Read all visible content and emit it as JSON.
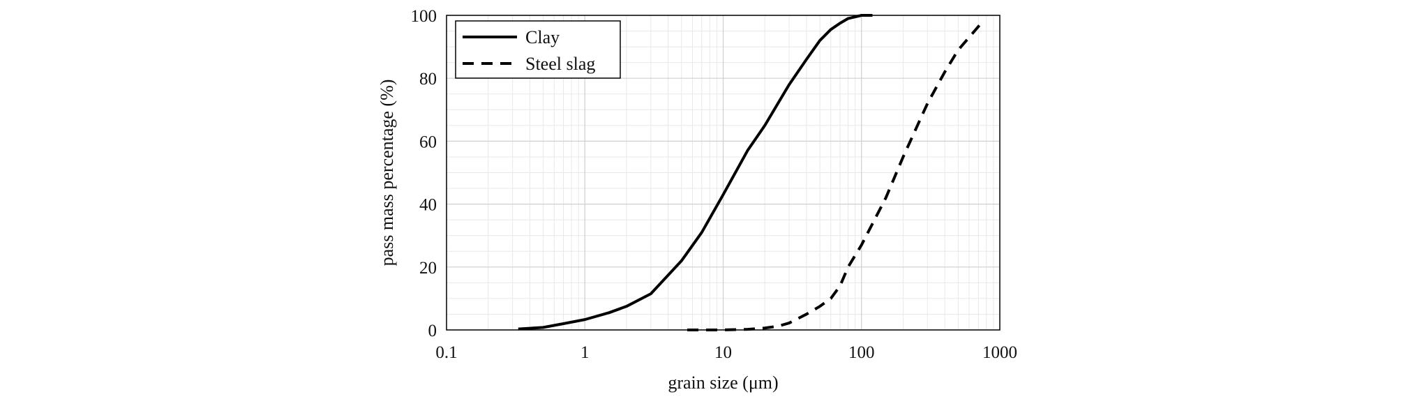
{
  "chart_data": {
    "type": "line",
    "title": "",
    "xlabel": "grain size (μm)",
    "ylabel": "pass mass percentage (%)",
    "x_scale": "log",
    "xlim": [
      0.1,
      1000
    ],
    "ylim": [
      0,
      100
    ],
    "x_ticks": [
      0.1,
      1,
      10,
      100,
      1000
    ],
    "x_tick_labels": [
      "0.1",
      "1",
      "10",
      "100",
      "1000"
    ],
    "y_ticks": [
      0,
      20,
      40,
      60,
      80,
      100
    ],
    "y_tick_labels": [
      "0",
      "20",
      "40",
      "60",
      "80",
      "100"
    ],
    "grid": true,
    "legend_position": "top-left",
    "series": [
      {
        "name": "Clay",
        "style": "solid",
        "color": "#000000",
        "x": [
          0.33,
          0.5,
          0.7,
          1.0,
          1.5,
          2.0,
          3.0,
          5.0,
          7.0,
          10,
          15,
          20,
          30,
          40,
          50,
          60,
          70,
          80,
          100,
          120
        ],
        "y": [
          0.3,
          0.8,
          2,
          3.3,
          5.5,
          7.5,
          11.5,
          22,
          31,
          43,
          57,
          65,
          78,
          86,
          92,
          95.5,
          97.5,
          99,
          100,
          100
        ]
      },
      {
        "name": "Steel slag",
        "style": "dashed",
        "color": "#000000",
        "x": [
          5.5,
          10,
          15,
          20,
          25,
          30,
          40,
          50,
          60,
          70,
          80,
          100,
          150,
          200,
          300,
          400,
          500,
          600,
          750
        ],
        "y": [
          0,
          0,
          0.2,
          0.6,
          1.2,
          2.2,
          5,
          7.5,
          10,
          14,
          20,
          27,
          42,
          55,
          72,
          82,
          89,
          93,
          98
        ]
      }
    ]
  }
}
